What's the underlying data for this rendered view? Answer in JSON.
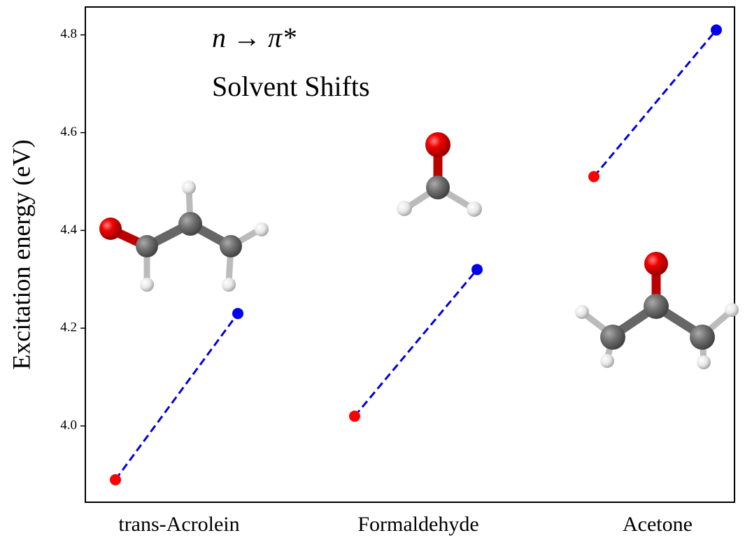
{
  "chart_data": {
    "type": "dumbbell",
    "title": "n → π*",
    "subtitle": "Solvent Shifts",
    "y_label": "Excitation energy (eV)",
    "categories": [
      "trans-Acrolein",
      "Formaldehyde",
      "Acetone"
    ],
    "series": [
      {
        "color": "#ff0000",
        "values": [
          3.89,
          4.02,
          4.51
        ]
      },
      {
        "color": "#0000ee",
        "values": [
          4.23,
          4.32,
          4.81
        ]
      }
    ],
    "line_color": "#0000dd",
    "ylim": [
      3.844,
      4.857
    ],
    "yticks": [
      {
        "value": 4.0,
        "label": "4.0"
      },
      4.2,
      4.4,
      4.6,
      4.8
    ],
    "grid": false
  }
}
